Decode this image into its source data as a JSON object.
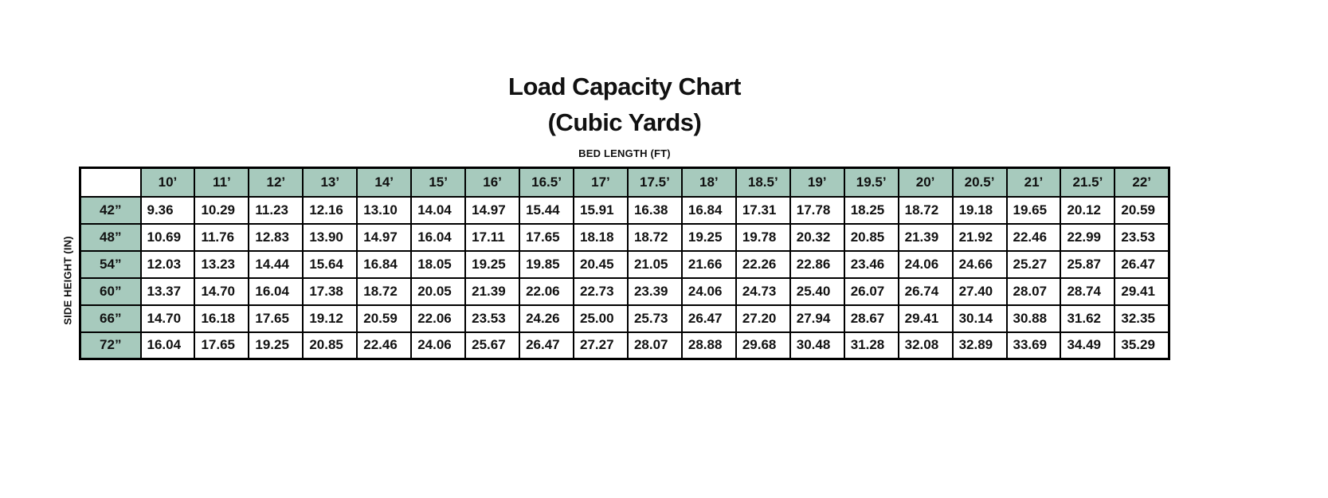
{
  "title": {
    "line1": "Load Capacity Chart",
    "line2": "(Cubic Yards)"
  },
  "chart_data": {
    "type": "table",
    "title": "Load Capacity Chart (Cubic Yards)",
    "x_axis_label": "BED LENGTH (FT)",
    "y_axis_label": "SIDE HEIGHT (IN)",
    "columns": [
      "10’",
      "11’",
      "12’",
      "13’",
      "14’",
      "15’",
      "16’",
      "16.5’",
      "17’",
      "17.5’",
      "18’",
      "18.5’",
      "19’",
      "19.5’",
      "20’",
      "20.5’",
      "21’",
      "21.5’",
      "22’"
    ],
    "rows": [
      {
        "label": "42”",
        "values": [
          "9.36",
          "10.29",
          "11.23",
          "12.16",
          "13.10",
          "14.04",
          "14.97",
          "15.44",
          "15.91",
          "16.38",
          "16.84",
          "17.31",
          "17.78",
          "18.25",
          "18.72",
          "19.18",
          "19.65",
          "20.12",
          "20.59"
        ]
      },
      {
        "label": "48”",
        "values": [
          "10.69",
          "11.76",
          "12.83",
          "13.90",
          "14.97",
          "16.04",
          "17.11",
          "17.65",
          "18.18",
          "18.72",
          "19.25",
          "19.78",
          "20.32",
          "20.85",
          "21.39",
          "21.92",
          "22.46",
          "22.99",
          "23.53"
        ]
      },
      {
        "label": "54”",
        "values": [
          "12.03",
          "13.23",
          "14.44",
          "15.64",
          "16.84",
          "18.05",
          "19.25",
          "19.85",
          "20.45",
          "21.05",
          "21.66",
          "22.26",
          "22.86",
          "23.46",
          "24.06",
          "24.66",
          "25.27",
          "25.87",
          "26.47"
        ]
      },
      {
        "label": "60”",
        "values": [
          "13.37",
          "14.70",
          "16.04",
          "17.38",
          "18.72",
          "20.05",
          "21.39",
          "22.06",
          "22.73",
          "23.39",
          "24.06",
          "24.73",
          "25.40",
          "26.07",
          "26.74",
          "27.40",
          "28.07",
          "28.74",
          "29.41"
        ]
      },
      {
        "label": "66”",
        "values": [
          "14.70",
          "16.18",
          "17.65",
          "19.12",
          "20.59",
          "22.06",
          "23.53",
          "24.26",
          "25.00",
          "25.73",
          "26.47",
          "27.20",
          "27.94",
          "28.67",
          "29.41",
          "30.14",
          "30.88",
          "31.62",
          "32.35"
        ]
      },
      {
        "label": "72”",
        "values": [
          "16.04",
          "17.65",
          "19.25",
          "20.85",
          "22.46",
          "24.06",
          "25.67",
          "26.47",
          "27.27",
          "28.07",
          "28.88",
          "29.68",
          "30.48",
          "31.28",
          "32.08",
          "32.89",
          "33.69",
          "34.49",
          "35.29"
        ]
      }
    ]
  },
  "colors": {
    "header_bg": "#a7cabd",
    "border": "#000000",
    "text": "#111111",
    "background": "#ffffff"
  }
}
